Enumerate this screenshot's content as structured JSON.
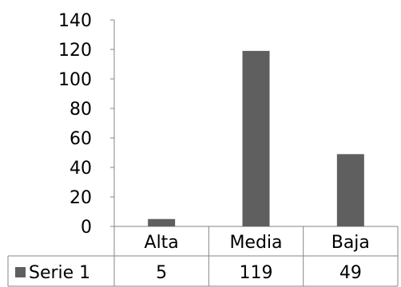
{
  "chart_data": {
    "type": "bar",
    "categories": [
      "Alta",
      "Media",
      "Baja"
    ],
    "series": [
      {
        "name": "Serie 1",
        "values": [
          5,
          119,
          49
        ],
        "color": "#5f5f5f"
      }
    ],
    "ylim": [
      0,
      140
    ],
    "yticks": [
      0,
      20,
      40,
      60,
      80,
      100,
      120,
      140
    ],
    "grid": false,
    "data_table": true,
    "colors": {
      "bar": "#5f5f5f",
      "axis": "#868686",
      "text": "#000000"
    }
  }
}
